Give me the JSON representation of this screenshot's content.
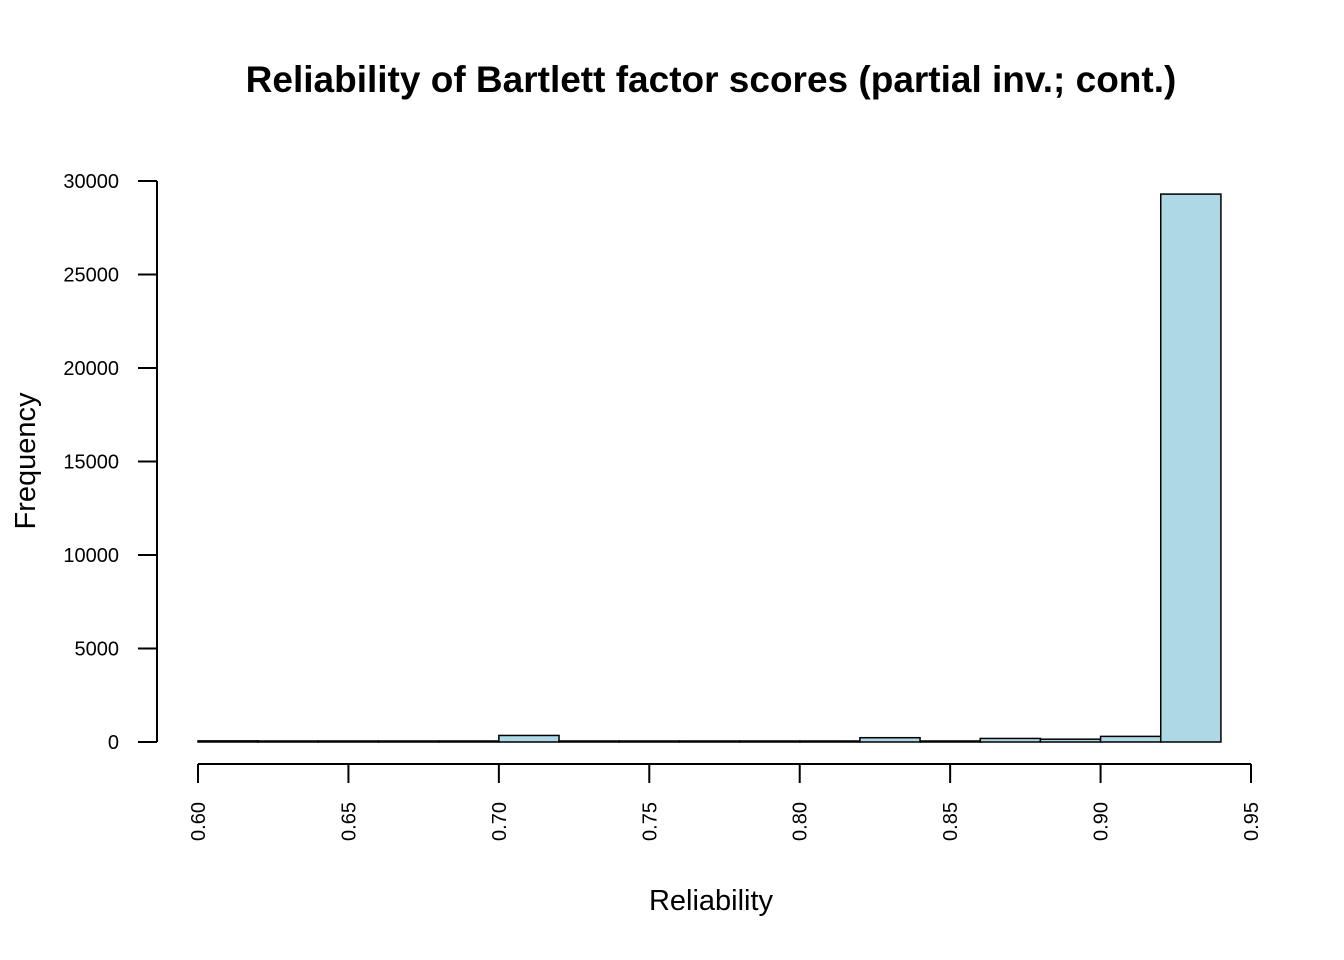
{
  "chart_data": {
    "type": "bar",
    "title": "Reliability of Bartlett factor scores (partial inv.; cont.)",
    "xlabel": "Reliability",
    "ylabel": "Frequency",
    "bar_color": "#ADD8E6",
    "xlim": [
      0.6,
      0.95
    ],
    "ylim": [
      0,
      30000
    ],
    "x_ticks": [
      "0.60",
      "0.65",
      "0.70",
      "0.75",
      "0.80",
      "0.85",
      "0.90",
      "0.95"
    ],
    "y_ticks": [
      "0",
      "5000",
      "10000",
      "15000",
      "20000",
      "25000",
      "30000"
    ],
    "bins": [
      {
        "start": 0.6,
        "end": 0.62,
        "count": 60
      },
      {
        "start": 0.62,
        "end": 0.64,
        "count": 40
      },
      {
        "start": 0.64,
        "end": 0.66,
        "count": 10
      },
      {
        "start": 0.66,
        "end": 0.68,
        "count": 5
      },
      {
        "start": 0.68,
        "end": 0.7,
        "count": 10
      },
      {
        "start": 0.7,
        "end": 0.72,
        "count": 350
      },
      {
        "start": 0.72,
        "end": 0.74,
        "count": 40
      },
      {
        "start": 0.74,
        "end": 0.76,
        "count": 5
      },
      {
        "start": 0.76,
        "end": 0.78,
        "count": 5
      },
      {
        "start": 0.78,
        "end": 0.8,
        "count": 15
      },
      {
        "start": 0.8,
        "end": 0.82,
        "count": 50
      },
      {
        "start": 0.82,
        "end": 0.84,
        "count": 230
      },
      {
        "start": 0.84,
        "end": 0.86,
        "count": 40
      },
      {
        "start": 0.86,
        "end": 0.88,
        "count": 190
      },
      {
        "start": 0.88,
        "end": 0.9,
        "count": 150
      },
      {
        "start": 0.9,
        "end": 0.92,
        "count": 300
      },
      {
        "start": 0.92,
        "end": 0.94,
        "count": 29300
      }
    ]
  }
}
